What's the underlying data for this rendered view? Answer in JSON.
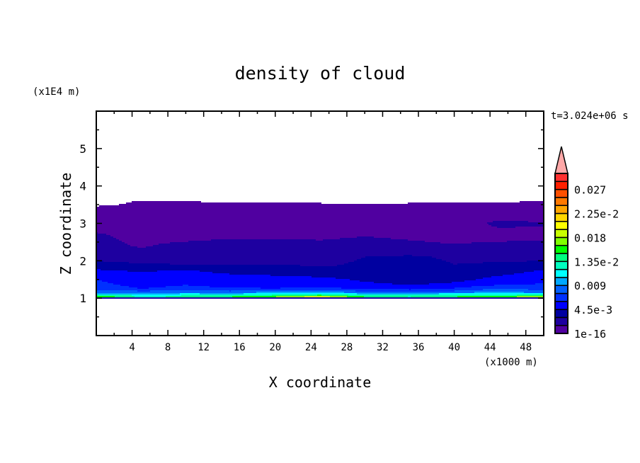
{
  "chart_data": {
    "type": "heatmap",
    "title": "density of cloud",
    "xlabel": "X coordinate",
    "ylabel": "Z coordinate",
    "x_unit": "(x1000 m)",
    "y_unit": "(x1E4 m)",
    "time_label": "t=3.024e+06 s",
    "xlim": [
      0,
      50
    ],
    "ylim": [
      0,
      6
    ],
    "x_ticks": [
      4,
      8,
      12,
      16,
      20,
      24,
      28,
      32,
      36,
      40,
      44,
      48
    ],
    "y_ticks": [
      1,
      2,
      3,
      4,
      5
    ],
    "colorbar": {
      "levels_min": 1e-16,
      "level_step": 0.0015,
      "labels": [
        "1e-16",
        "4.5e-3",
        "0.009",
        "1.35e-2",
        "0.018",
        "2.25e-2",
        "0.027"
      ],
      "label_values": [
        0,
        0.0045,
        0.009,
        0.0135,
        0.018,
        0.0225,
        0.027
      ],
      "colors": [
        "#5000a0",
        "#1e00a0",
        "#0000a0",
        "#0000ff",
        "#0030ff",
        "#0060ff",
        "#00a8ff",
        "#00ffff",
        "#00ffc0",
        "#00ff80",
        "#00ff00",
        "#80ff00",
        "#c8ff00",
        "#ffff00",
        "#ffd700",
        "#ffa500",
        "#ff7800",
        "#ff5000",
        "#ff2000",
        "#ff3030"
      ],
      "over_color": "#ffa8a8",
      "extend": "max"
    },
    "grid_x": [
      0,
      5,
      10,
      15,
      20,
      25,
      30,
      35,
      40,
      45,
      50
    ],
    "grid_z": [
      0.97,
      1.0,
      1.04,
      1.08,
      1.12,
      1.17,
      1.25,
      1.35,
      1.5,
      1.7,
      1.9,
      2.1,
      2.4,
      2.7,
      3.0,
      3.3,
      3.38,
      3.5,
      3.58,
      3.66
    ],
    "values": [
      [
        0,
        0,
        0,
        0,
        0,
        0,
        0,
        0,
        0,
        0,
        0
      ],
      [
        0.0005,
        0.0012,
        0.001,
        0.0008,
        0.0009,
        0.0012,
        0.001,
        0.0008,
        0.0006,
        0.0005,
        0.0008
      ],
      [
        0.0165,
        0.013,
        0.014,
        0.015,
        0.0165,
        0.019,
        0.015,
        0.0135,
        0.015,
        0.016,
        0.0175
      ],
      [
        0.0135,
        0.0115,
        0.012,
        0.0125,
        0.0135,
        0.015,
        0.0125,
        0.012,
        0.0125,
        0.013,
        0.014
      ],
      [
        0.01,
        0.0095,
        0.0105,
        0.01,
        0.011,
        0.0115,
        0.01,
        0.01,
        0.0105,
        0.011,
        0.0105
      ],
      [
        0.0085,
        0.008,
        0.0082,
        0.008,
        0.0085,
        0.0085,
        0.008,
        0.0075,
        0.008,
        0.0085,
        0.008
      ],
      [
        0.007,
        0.006,
        0.0065,
        0.0062,
        0.006,
        0.0065,
        0.0058,
        0.0055,
        0.0062,
        0.0078,
        0.007
      ],
      [
        0.0065,
        0.0055,
        0.006,
        0.0055,
        0.0058,
        0.0055,
        0.005,
        0.0045,
        0.005,
        0.006,
        0.0062
      ],
      [
        0.006,
        0.005,
        0.0055,
        0.0058,
        0.005,
        0.005,
        0.0042,
        0.0035,
        0.004,
        0.005,
        0.0055
      ],
      [
        0.005,
        0.0045,
        0.005,
        0.004,
        0.004,
        0.0035,
        0.003,
        0.003,
        0.0035,
        0.004,
        0.0048
      ],
      [
        0.0035,
        0.0032,
        0.003,
        0.003,
        0.003,
        0.0028,
        0.0032,
        0.0035,
        0.003,
        0.0032,
        0.0035
      ],
      [
        0.0025,
        0.002,
        0.0018,
        0.0022,
        0.0025,
        0.0025,
        0.003,
        0.0032,
        0.0028,
        0.0025,
        0.0025
      ],
      [
        0.0018,
        0.0014,
        0.0018,
        0.002,
        0.002,
        0.0018,
        0.002,
        0.0018,
        0.0016,
        0.0018,
        0.0018
      ],
      [
        0.0016,
        0.0012,
        0.001,
        0.0012,
        0.0012,
        0.0012,
        0.0014,
        0.0012,
        0.001,
        0.001,
        0.0012
      ],
      [
        0.001,
        0.0008,
        0.0006,
        0.0006,
        0.0006,
        0.0006,
        0.0008,
        0.0006,
        0.0008,
        0.0018,
        0.0016
      ],
      [
        0.0006,
        0.0005,
        0.0004,
        0.0004,
        0.0004,
        0.0004,
        0.0004,
        0.0004,
        0.0005,
        0.0006,
        0.0006
      ],
      [
        0.0004,
        0.0004,
        0.0004,
        0.0004,
        0.0004,
        0.0004,
        0.0003,
        0.0003,
        0.0004,
        0.0004,
        0.0004
      ],
      [
        -0.0002,
        0.0002,
        0.0002,
        0.0002,
        0.0002,
        0.0002,
        0.0001,
        0.0002,
        0.0002,
        0.0001,
        0.0002
      ],
      [
        -0.0004,
        0.0001,
        0.0001,
        -0.0002,
        -0.0002,
        -0.0002,
        -0.0003,
        -0.0002,
        -0.0002,
        -0.0001,
        0.0001
      ],
      [
        -0.0006,
        -0.0004,
        -0.0004,
        -0.0004,
        -0.0004,
        -0.0004,
        -0.0004,
        -0.0004,
        -0.0004,
        -0.0004,
        -0.0004
      ]
    ]
  }
}
